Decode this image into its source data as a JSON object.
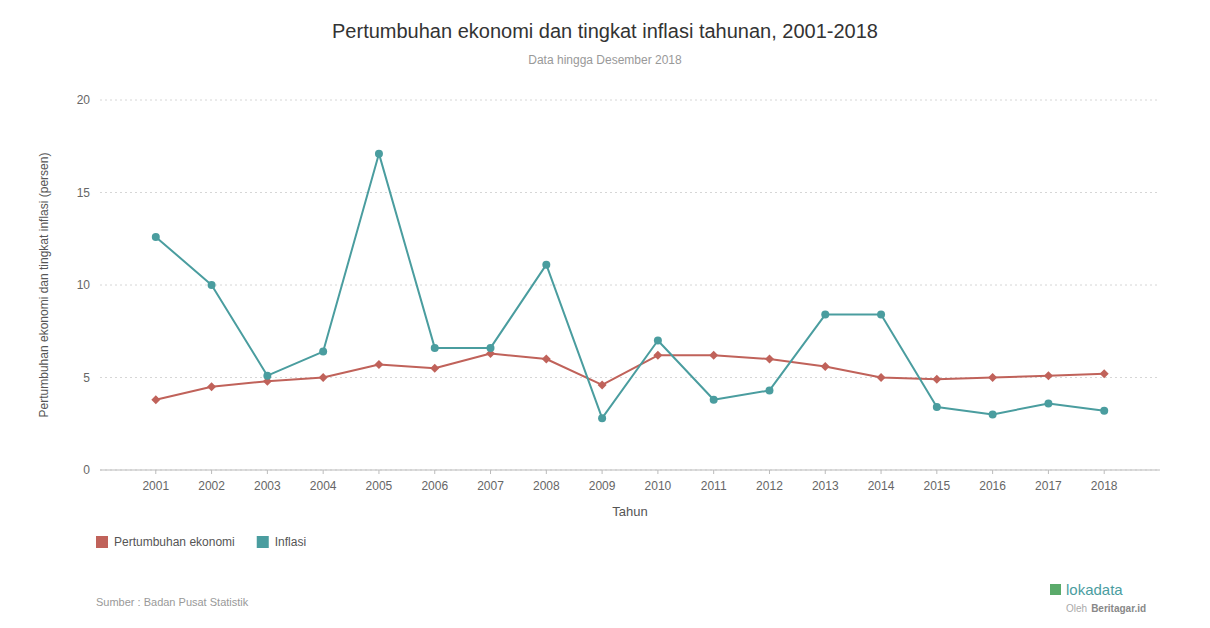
{
  "chart_data": {
    "type": "line",
    "title": "Pertumbuhan ekonomi dan tingkat inflasi tahunan, 2001-2018",
    "subtitle": "Data hingga Desember 2018",
    "x_label": "Tahun",
    "y_label": "Pertumbuhan ekonomi dan tingkat inflasi (persen)",
    "source": "Sumber : Badan Pusat Statistik",
    "annotations": [
      "lokadata",
      "Oleh",
      "Beritagar.id"
    ],
    "x": [
      2001,
      2002,
      2003,
      2004,
      2005,
      2006,
      2007,
      2008,
      2009,
      2010,
      2011,
      2012,
      2013,
      2014,
      2015,
      2016,
      2017,
      2018
    ],
    "series": [
      {
        "name": "Pertumbuhan ekonomi",
        "color": "#c0625a",
        "marker": "diamond",
        "line_style": "solid",
        "values": [
          3.8,
          4.5,
          4.8,
          5.0,
          5.7,
          5.5,
          6.3,
          6.0,
          4.6,
          6.2,
          6.2,
          6.0,
          5.6,
          5.0,
          4.9,
          5.0,
          5.1,
          5.2
        ]
      },
      {
        "name": "Inflasi",
        "color": "#4a9d9f",
        "marker": "circle",
        "line_style": "solid",
        "values": [
          12.6,
          10.0,
          5.1,
          6.4,
          17.1,
          6.6,
          6.6,
          11.1,
          2.8,
          7.0,
          3.8,
          4.3,
          8.4,
          8.4,
          3.4,
          3.0,
          3.6,
          3.2
        ]
      }
    ],
    "xlim": [
      2000,
      2019
    ],
    "xticks": [
      2001,
      2002,
      2003,
      2004,
      2005,
      2006,
      2007,
      2008,
      2009,
      2010,
      2011,
      2012,
      2013,
      2014,
      2015,
      2016,
      2017,
      2018
    ],
    "ylim": [
      0,
      20
    ],
    "yticks": [
      0,
      5,
      10,
      15,
      20
    ],
    "grid": true,
    "legend": "lower left"
  }
}
